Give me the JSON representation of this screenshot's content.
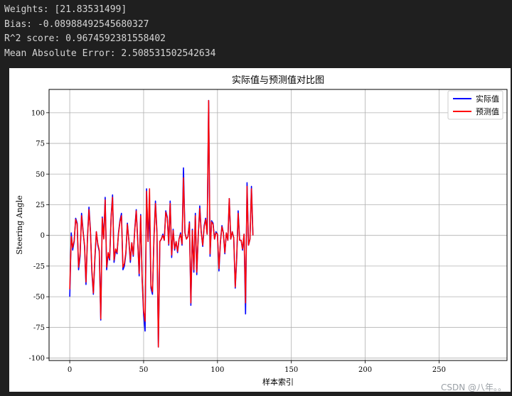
{
  "console": {
    "lines": [
      "Weights: [21.83531499]",
      "Bias: -0.08988492545680327",
      "R^2 score: 0.9674592381558402",
      "Mean Absolute Error: 2.508531502542634"
    ]
  },
  "watermark": "CSDN @八年。。",
  "colors": {
    "actual": "#0000ff",
    "predicted": "#ff0000",
    "grid": "#b0b0b0"
  },
  "chart_data": {
    "type": "line",
    "title": "实际值与预测值对比图",
    "xlabel": "样本索引",
    "ylabel": "Steering Angle",
    "xlim": [
      -14,
      296
    ],
    "ylim": [
      -102,
      119
    ],
    "xticks": [
      0,
      50,
      100,
      150,
      200,
      250
    ],
    "yticks": [
      -100,
      -75,
      -50,
      -25,
      0,
      25,
      50,
      75,
      100
    ],
    "grid": true,
    "legend_position": "top-right",
    "series": [
      {
        "name": "实际值",
        "color": "#0000ff",
        "points": [
          [
            0,
            -50
          ],
          [
            1,
            2
          ],
          [
            2,
            -12
          ],
          [
            3,
            -5
          ],
          [
            4,
            14
          ],
          [
            5,
            10
          ],
          [
            6,
            -28
          ],
          [
            7,
            -17
          ],
          [
            8,
            18
          ],
          [
            9,
            4
          ],
          [
            10,
            -9
          ],
          [
            11,
            -40
          ],
          [
            12,
            -2
          ],
          [
            13,
            23
          ],
          [
            14,
            4
          ],
          [
            15,
            -30
          ],
          [
            16,
            -48
          ],
          [
            17,
            -20
          ],
          [
            18,
            3
          ],
          [
            19,
            -8
          ],
          [
            20,
            -13
          ],
          [
            21,
            -69
          ],
          [
            22,
            15
          ],
          [
            23,
            -2
          ],
          [
            24,
            31
          ],
          [
            25,
            -28
          ],
          [
            26,
            -15
          ],
          [
            27,
            -20
          ],
          [
            28,
            16
          ],
          [
            29,
            33
          ],
          [
            30,
            -22
          ],
          [
            31,
            -12
          ],
          [
            32,
            -15
          ],
          [
            33,
            2
          ],
          [
            34,
            12
          ],
          [
            35,
            18
          ],
          [
            36,
            -28
          ],
          [
            37,
            -25
          ],
          [
            38,
            -15
          ],
          [
            39,
            10
          ],
          [
            40,
            -4
          ],
          [
            41,
            -22
          ],
          [
            42,
            -6
          ],
          [
            43,
            -17
          ],
          [
            44,
            5
          ],
          [
            45,
            21
          ],
          [
            46,
            -3
          ],
          [
            47,
            -33
          ],
          [
            48,
            17
          ],
          [
            49,
            -36
          ],
          [
            50,
            -65
          ],
          [
            51,
            -78
          ],
          [
            52,
            38
          ],
          [
            53,
            -5
          ],
          [
            54,
            20
          ],
          [
            55,
            -43
          ],
          [
            56,
            -48
          ],
          [
            57,
            -2
          ],
          [
            58,
            28
          ],
          [
            59,
            3
          ],
          [
            60,
            -91
          ],
          [
            61,
            -5
          ],
          [
            62,
            -3
          ],
          [
            63,
            1
          ],
          [
            64,
            -4
          ],
          [
            65,
            20
          ],
          [
            66,
            15
          ],
          [
            67,
            -8
          ],
          [
            68,
            28
          ],
          [
            69,
            -18
          ],
          [
            70,
            5
          ],
          [
            71,
            -12
          ],
          [
            72,
            -5
          ],
          [
            73,
            -14
          ],
          [
            74,
            -3
          ],
          [
            75,
            2
          ],
          [
            76,
            -8
          ],
          [
            77,
            55
          ],
          [
            78,
            2
          ],
          [
            79,
            -3
          ],
          [
            80,
            -1
          ],
          [
            81,
            11
          ],
          [
            82,
            -57
          ],
          [
            83,
            5
          ],
          [
            84,
            -30
          ],
          [
            85,
            18
          ],
          [
            86,
            -32
          ],
          [
            87,
            0
          ],
          [
            88,
            24
          ],
          [
            89,
            3
          ],
          [
            90,
            -9
          ],
          [
            91,
            8
          ],
          [
            92,
            14
          ],
          [
            93,
            1
          ],
          [
            94,
            110
          ],
          [
            95,
            -17
          ],
          [
            96,
            12
          ],
          [
            97,
            10
          ],
          [
            98,
            -3
          ],
          [
            99,
            3
          ],
          [
            100,
            1
          ],
          [
            101,
            -29
          ],
          [
            102,
            -5
          ],
          [
            103,
            8
          ],
          [
            104,
            2
          ],
          [
            105,
            -15
          ],
          [
            106,
            2
          ],
          [
            107,
            -4
          ],
          [
            108,
            30
          ],
          [
            109,
            -3
          ],
          [
            110,
            3
          ],
          [
            111,
            -2
          ],
          [
            112,
            -43
          ],
          [
            113,
            -20
          ],
          [
            114,
            20
          ],
          [
            115,
            -4
          ],
          [
            116,
            -4
          ],
          [
            117,
            -12
          ],
          [
            118,
            1
          ],
          [
            119,
            -64
          ],
          [
            120,
            43
          ],
          [
            121,
            -8
          ],
          [
            122,
            -3
          ],
          [
            123,
            40
          ],
          [
            124,
            0
          ]
        ]
      },
      {
        "name": "预测值",
        "color": "#ff0000",
        "points": [
          [
            0,
            -44
          ],
          [
            1,
            -1
          ],
          [
            2,
            -10
          ],
          [
            3,
            -4
          ],
          [
            4,
            13
          ],
          [
            5,
            9
          ],
          [
            6,
            -26
          ],
          [
            7,
            -15
          ],
          [
            8,
            16
          ],
          [
            9,
            3
          ],
          [
            10,
            -8
          ],
          [
            11,
            -38
          ],
          [
            12,
            -3
          ],
          [
            13,
            21
          ],
          [
            14,
            3
          ],
          [
            15,
            -28
          ],
          [
            16,
            -47
          ],
          [
            17,
            -18
          ],
          [
            18,
            3
          ],
          [
            19,
            -7
          ],
          [
            20,
            -12
          ],
          [
            21,
            -68
          ],
          [
            22,
            14
          ],
          [
            23,
            -3
          ],
          [
            24,
            29
          ],
          [
            25,
            -26
          ],
          [
            26,
            -14
          ],
          [
            27,
            -19
          ],
          [
            28,
            15
          ],
          [
            29,
            31
          ],
          [
            30,
            -20
          ],
          [
            31,
            -11
          ],
          [
            32,
            -14
          ],
          [
            33,
            1
          ],
          [
            34,
            11
          ],
          [
            35,
            16
          ],
          [
            36,
            -26
          ],
          [
            37,
            -23
          ],
          [
            38,
            -14
          ],
          [
            39,
            9
          ],
          [
            40,
            -4
          ],
          [
            41,
            -20
          ],
          [
            42,
            -6
          ],
          [
            43,
            -16
          ],
          [
            44,
            4
          ],
          [
            45,
            20
          ],
          [
            46,
            -4
          ],
          [
            47,
            -31
          ],
          [
            48,
            16
          ],
          [
            49,
            -35
          ],
          [
            50,
            -62
          ],
          [
            51,
            -70
          ],
          [
            52,
            36
          ],
          [
            53,
            -5
          ],
          [
            54,
            38
          ],
          [
            55,
            -41
          ],
          [
            56,
            -46
          ],
          [
            57,
            -3
          ],
          [
            58,
            26
          ],
          [
            59,
            2
          ],
          [
            60,
            -91
          ],
          [
            61,
            -5
          ],
          [
            62,
            -3
          ],
          [
            63,
            0
          ],
          [
            64,
            -4
          ],
          [
            65,
            19
          ],
          [
            66,
            14
          ],
          [
            67,
            -7
          ],
          [
            68,
            26
          ],
          [
            69,
            -16
          ],
          [
            70,
            4
          ],
          [
            71,
            -11
          ],
          [
            72,
            -5
          ],
          [
            73,
            -13
          ],
          [
            74,
            -3
          ],
          [
            75,
            1
          ],
          [
            76,
            -7
          ],
          [
            77,
            47
          ],
          [
            78,
            2
          ],
          [
            79,
            -3
          ],
          [
            80,
            -1
          ],
          [
            81,
            10
          ],
          [
            82,
            -55
          ],
          [
            83,
            4
          ],
          [
            84,
            -28
          ],
          [
            85,
            16
          ],
          [
            86,
            -30
          ],
          [
            87,
            0
          ],
          [
            88,
            22
          ],
          [
            89,
            2
          ],
          [
            90,
            -8
          ],
          [
            91,
            7
          ],
          [
            92,
            13
          ],
          [
            93,
            1
          ],
          [
            94,
            110
          ],
          [
            95,
            -15
          ],
          [
            96,
            11
          ],
          [
            97,
            9
          ],
          [
            98,
            -3
          ],
          [
            99,
            2
          ],
          [
            100,
            1
          ],
          [
            101,
            -27
          ],
          [
            102,
            -5
          ],
          [
            103,
            7
          ],
          [
            104,
            2
          ],
          [
            105,
            -14
          ],
          [
            106,
            2
          ],
          [
            107,
            -4
          ],
          [
            108,
            30
          ],
          [
            109,
            -3
          ],
          [
            110,
            3
          ],
          [
            111,
            -2
          ],
          [
            112,
            -42
          ],
          [
            113,
            -19
          ],
          [
            114,
            18
          ],
          [
            115,
            -4
          ],
          [
            116,
            -4
          ],
          [
            117,
            -11
          ],
          [
            118,
            1
          ],
          [
            119,
            -55
          ],
          [
            120,
            40
          ],
          [
            121,
            -8
          ],
          [
            122,
            -3
          ],
          [
            123,
            38
          ],
          [
            124,
            0
          ]
        ]
      }
    ]
  }
}
